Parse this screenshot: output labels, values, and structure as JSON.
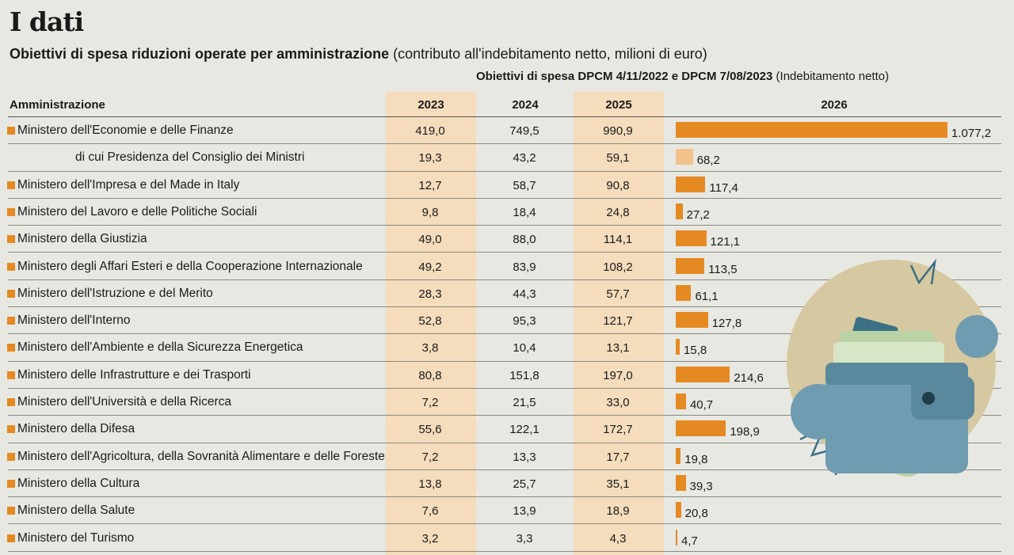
{
  "title": "I dati",
  "subtitle_bold": "Obiettivi di spesa riduzioni operate per amministrazione",
  "subtitle_rest": "(contributo all'indebitamento netto, milioni di euro)",
  "note_bold": "Obiettivi di spesa DPCM 4/11/2022 e DPCM 7/08/2023",
  "note_rest": "(Indebitamento netto)",
  "columns": [
    "Amministrazione",
    "2023",
    "2024",
    "2025",
    "2026"
  ],
  "colors": {
    "bar": "#e58a22",
    "bar_sub": "#f3c28a",
    "band": "#f4dcbc"
  },
  "chart_data": {
    "type": "table",
    "columns": [
      "Amministrazione",
      "2023",
      "2024",
      "2025",
      "2026"
    ],
    "rows": [
      {
        "name": "Ministero dell'Economie e delle Finanze",
        "v2023": "419,0",
        "v2024": "749,5",
        "v2025": "990,9",
        "v2026": "1.077,2",
        "bar2026": 1077.2,
        "sub": false
      },
      {
        "name": "di cui Presidenza del Consiglio dei Ministri",
        "v2023": "19,3",
        "v2024": "43,2",
        "v2025": "59,1",
        "v2026": "68,2",
        "bar2026": 68.2,
        "sub": true
      },
      {
        "name": "Ministero dell'Impresa e del Made in Italy",
        "v2023": "12,7",
        "v2024": "58,7",
        "v2025": "90,8",
        "v2026": "117,4",
        "bar2026": 117.4,
        "sub": false
      },
      {
        "name": "Ministero del Lavoro e delle Politiche Sociali",
        "v2023": "9,8",
        "v2024": "18,4",
        "v2025": "24,8",
        "v2026": "27,2",
        "bar2026": 27.2,
        "sub": false
      },
      {
        "name": "Ministero della Giustizia",
        "v2023": "49,0",
        "v2024": "88,0",
        "v2025": "114,1",
        "v2026": "121,1",
        "bar2026": 121.1,
        "sub": false
      },
      {
        "name": "Ministero degli Affari Esteri e della Cooperazione Internazionale",
        "v2023": "49,2",
        "v2024": "83,9",
        "v2025": "108,2",
        "v2026": "113,5",
        "bar2026": 113.5,
        "sub": false
      },
      {
        "name": "Ministero dell'Istruzione e del Merito",
        "v2023": "28,3",
        "v2024": "44,3",
        "v2025": "57,7",
        "v2026": "61,1",
        "bar2026": 61.1,
        "sub": false
      },
      {
        "name": "Ministero dell'Interno",
        "v2023": "52,8",
        "v2024": "95,3",
        "v2025": "121,7",
        "v2026": "127,8",
        "bar2026": 127.8,
        "sub": false
      },
      {
        "name": "Ministero dell'Ambiente e della Sicurezza Energetica",
        "v2023": "3,8",
        "v2024": "10,4",
        "v2025": "13,1",
        "v2026": "15,8",
        "bar2026": 15.8,
        "sub": false
      },
      {
        "name": "Ministero delle Infrastrutture e dei Trasporti",
        "v2023": "80,8",
        "v2024": "151,8",
        "v2025": "197,0",
        "v2026": "214,6",
        "bar2026": 214.6,
        "sub": false
      },
      {
        "name": "Ministero dell'Università e della Ricerca",
        "v2023": "7,2",
        "v2024": "21,5",
        "v2025": "33,0",
        "v2026": "40,7",
        "bar2026": 40.7,
        "sub": false
      },
      {
        "name": "Ministero della Difesa",
        "v2023": "55,6",
        "v2024": "122,1",
        "v2025": "172,7",
        "v2026": "198,9",
        "bar2026": 198.9,
        "sub": false
      },
      {
        "name": "Ministero dell'Agricoltura, della Sovranità Alimentare e delle Foreste",
        "v2023": "7,2",
        "v2024": "13,3",
        "v2025": "17,7",
        "v2026": "19,8",
        "bar2026": 19.8,
        "sub": false
      },
      {
        "name": "Ministero della Cultura",
        "v2023": "13,8",
        "v2024": "25,7",
        "v2025": "35,1",
        "v2026": "39,3",
        "bar2026": 39.3,
        "sub": false
      },
      {
        "name": "Ministero della Salute",
        "v2023": "7,6",
        "v2024": "13,9",
        "v2025": "18,9",
        "v2026": "20,8",
        "bar2026": 20.8,
        "sub": false
      },
      {
        "name": "Ministero del Turismo",
        "v2023": "3,2",
        "v2024": "3,3",
        "v2025": "4,3",
        "v2026": "4,7",
        "bar2026": 4.7,
        "sub": false
      }
    ]
  }
}
